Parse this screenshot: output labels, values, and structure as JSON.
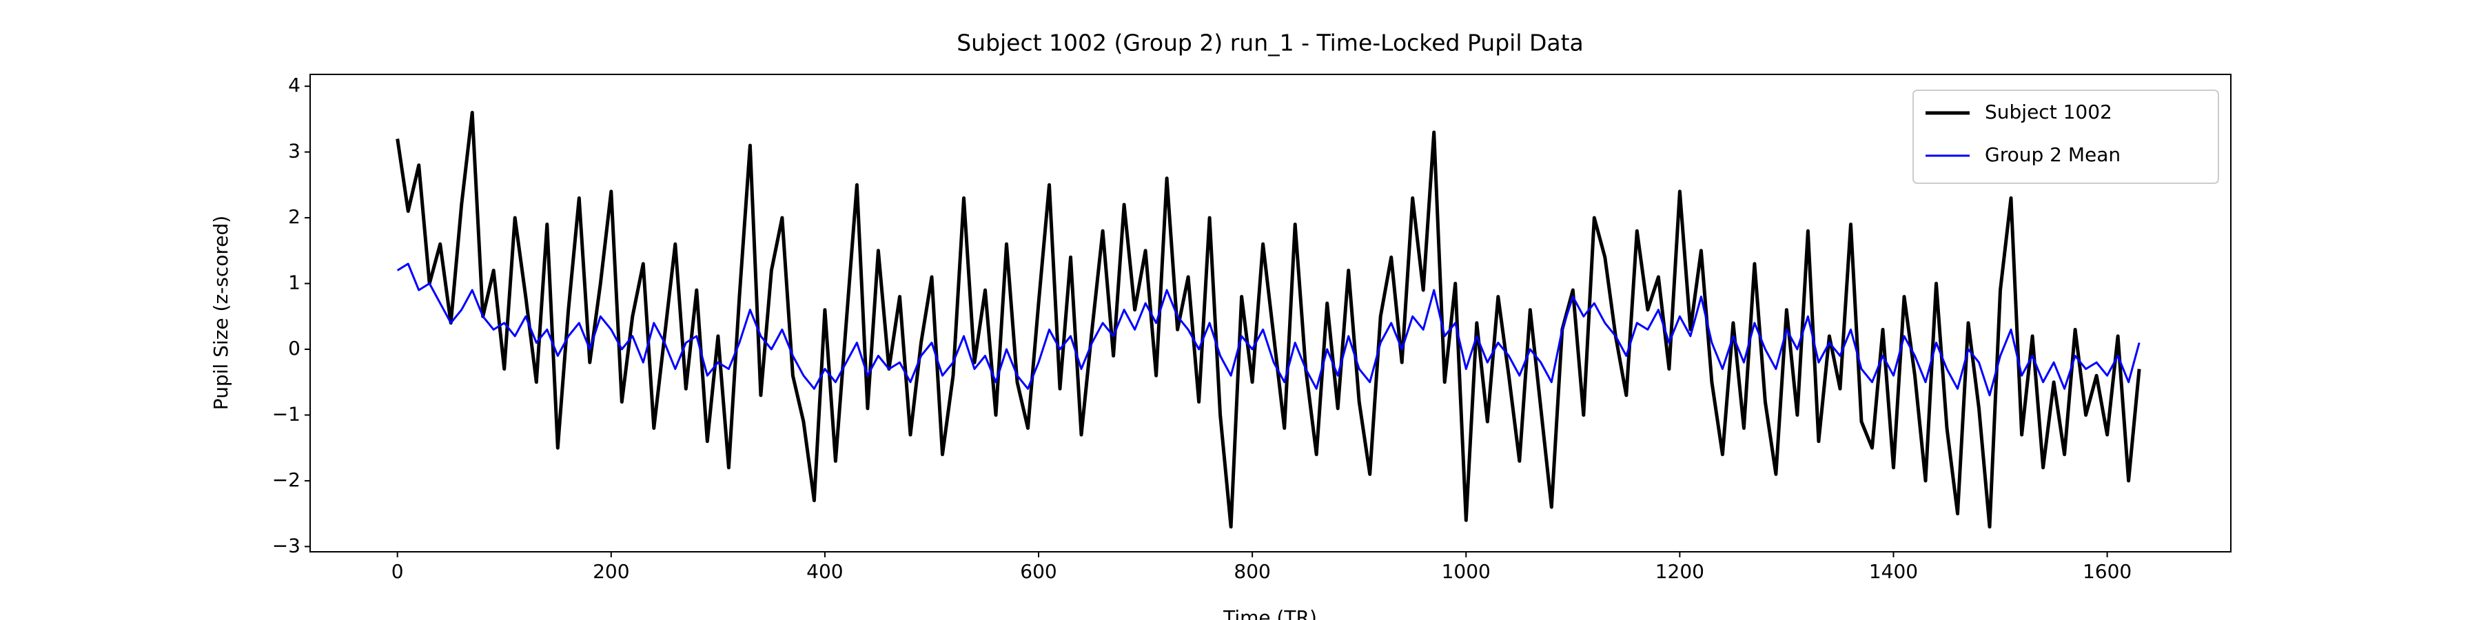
{
  "chart_data": {
    "type": "line",
    "title": "Subject 1002 (Group 2) run_1 - Time-Locked Pupil Data",
    "x_label": "Time (TR)",
    "y_label": "Pupil Size (z-scored)",
    "x": [
      0,
      10,
      20,
      30,
      40,
      50,
      60,
      70,
      80,
      90,
      100,
      110,
      120,
      130,
      140,
      150,
      160,
      170,
      180,
      190,
      200,
      210,
      220,
      230,
      240,
      250,
      260,
      270,
      280,
      290,
      300,
      310,
      320,
      330,
      340,
      350,
      360,
      370,
      380,
      390,
      400,
      410,
      420,
      430,
      440,
      450,
      460,
      470,
      480,
      490,
      500,
      510,
      520,
      530,
      540,
      550,
      560,
      570,
      580,
      590,
      600,
      610,
      620,
      630,
      640,
      650,
      660,
      670,
      680,
      690,
      700,
      710,
      720,
      730,
      740,
      750,
      760,
      770,
      780,
      790,
      800,
      810,
      820,
      830,
      840,
      850,
      860,
      870,
      880,
      890,
      900,
      910,
      920,
      930,
      940,
      950,
      960,
      970,
      980,
      990,
      1000,
      1010,
      1020,
      1030,
      1040,
      1050,
      1060,
      1070,
      1080,
      1090,
      1100,
      1110,
      1120,
      1130,
      1140,
      1150,
      1160,
      1170,
      1180,
      1190,
      1200,
      1210,
      1220,
      1230,
      1240,
      1250,
      1260,
      1270,
      1280,
      1290,
      1300,
      1310,
      1320,
      1330,
      1340,
      1350,
      1360,
      1370,
      1380,
      1390,
      1400,
      1410,
      1420,
      1430,
      1440,
      1450,
      1460,
      1470,
      1480,
      1490,
      1500,
      1510,
      1520,
      1530,
      1540,
      1550,
      1560,
      1570,
      1580,
      1590,
      1600,
      1610,
      1620,
      1630
    ],
    "series": [
      {
        "name": "Subject 1002",
        "color": "#000000",
        "line_width": 5,
        "values": [
          3.2,
          2.1,
          2.8,
          1.0,
          1.6,
          0.4,
          2.2,
          3.6,
          0.5,
          1.2,
          -0.3,
          2.0,
          0.8,
          -0.5,
          1.9,
          -1.5,
          0.6,
          2.3,
          -0.2,
          1.0,
          2.4,
          -0.8,
          0.5,
          1.3,
          -1.2,
          0.2,
          1.6,
          -0.6,
          0.9,
          -1.4,
          0.2,
          -1.8,
          0.8,
          3.1,
          -0.7,
          1.2,
          2.0,
          -0.4,
          -1.1,
          -2.3,
          0.6,
          -1.7,
          0.4,
          2.5,
          -0.9,
          1.5,
          -0.3,
          0.8,
          -1.3,
          0.1,
          1.1,
          -1.6,
          -0.4,
          2.3,
          -0.2,
          0.9,
          -1.0,
          1.6,
          -0.5,
          -1.2,
          0.7,
          2.5,
          -0.6,
          1.4,
          -1.3,
          0.3,
          1.8,
          -0.1,
          2.2,
          0.6,
          1.5,
          -0.4,
          2.6,
          0.3,
          1.1,
          -0.8,
          2.0,
          -1.0,
          -2.7,
          0.8,
          -0.5,
          1.6,
          0.2,
          -1.2,
          1.9,
          -0.3,
          -1.6,
          0.7,
          -0.9,
          1.2,
          -0.8,
          -1.9,
          0.5,
          1.4,
          -0.2,
          2.3,
          0.9,
          3.3,
          -0.5,
          1.0,
          -2.6,
          0.4,
          -1.1,
          0.8,
          -0.4,
          -1.7,
          0.6,
          -0.9,
          -2.4,
          0.3,
          0.9,
          -1.0,
          2.0,
          1.4,
          0.2,
          -0.7,
          1.8,
          0.6,
          1.1,
          -0.3,
          2.4,
          0.3,
          1.5,
          -0.5,
          -1.6,
          0.4,
          -1.2,
          1.3,
          -0.8,
          -1.9,
          0.6,
          -1.0,
          1.8,
          -1.4,
          0.2,
          -0.6,
          1.9,
          -1.1,
          -1.5,
          0.3,
          -1.8,
          0.8,
          -0.4,
          -2.0,
          1.0,
          -1.2,
          -2.5,
          0.4,
          -0.9,
          -2.7,
          0.9,
          2.3,
          -1.3,
          0.2,
          -1.8,
          -0.5,
          -1.6,
          0.3,
          -1.0,
          -0.4,
          -1.3,
          0.2,
          -2.0,
          -0.3
        ]
      },
      {
        "name": "Group 2 Mean",
        "color": "#0000ff",
        "line_width": 3,
        "values": [
          1.2,
          1.3,
          0.9,
          1.0,
          0.7,
          0.4,
          0.6,
          0.9,
          0.5,
          0.3,
          0.4,
          0.2,
          0.5,
          0.1,
          0.3,
          -0.1,
          0.2,
          0.4,
          0.0,
          0.5,
          0.3,
          0.0,
          0.2,
          -0.2,
          0.4,
          0.1,
          -0.3,
          0.1,
          0.2,
          -0.4,
          -0.2,
          -0.3,
          0.1,
          0.6,
          0.2,
          0.0,
          0.3,
          -0.1,
          -0.4,
          -0.6,
          -0.3,
          -0.5,
          -0.2,
          0.1,
          -0.4,
          -0.1,
          -0.3,
          -0.2,
          -0.5,
          -0.1,
          0.1,
          -0.4,
          -0.2,
          0.2,
          -0.3,
          -0.1,
          -0.5,
          0.0,
          -0.4,
          -0.6,
          -0.2,
          0.3,
          0.0,
          0.2,
          -0.3,
          0.1,
          0.4,
          0.2,
          0.6,
          0.3,
          0.7,
          0.4,
          0.9,
          0.5,
          0.3,
          0.0,
          0.4,
          -0.1,
          -0.4,
          0.2,
          0.0,
          0.3,
          -0.2,
          -0.5,
          0.1,
          -0.3,
          -0.6,
          0.0,
          -0.4,
          0.2,
          -0.3,
          -0.5,
          0.1,
          0.4,
          0.0,
          0.5,
          0.3,
          0.9,
          0.2,
          0.4,
          -0.3,
          0.2,
          -0.2,
          0.1,
          -0.1,
          -0.4,
          0.0,
          -0.2,
          -0.5,
          0.3,
          0.8,
          0.5,
          0.7,
          0.4,
          0.2,
          -0.1,
          0.4,
          0.3,
          0.6,
          0.1,
          0.5,
          0.2,
          0.8,
          0.1,
          -0.3,
          0.2,
          -0.2,
          0.4,
          0.0,
          -0.3,
          0.3,
          0.0,
          0.5,
          -0.2,
          0.1,
          -0.1,
          0.3,
          -0.3,
          -0.5,
          -0.1,
          -0.4,
          0.2,
          -0.1,
          -0.5,
          0.1,
          -0.3,
          -0.6,
          0.0,
          -0.2,
          -0.7,
          -0.1,
          0.3,
          -0.4,
          -0.1,
          -0.5,
          -0.2,
          -0.6,
          -0.1,
          -0.3,
          -0.2,
          -0.4,
          -0.1,
          -0.5,
          0.1
        ]
      }
    ],
    "xlim": [
      -81.7,
      1715.7
    ],
    "ylim": [
      -3.08,
      4.18
    ],
    "xticks": [
      0,
      200,
      400,
      600,
      800,
      1000,
      1200,
      1400,
      1600
    ],
    "yticks": [
      {
        "value": -3,
        "label": "−3"
      },
      {
        "value": -2,
        "label": "−2"
      },
      {
        "value": -1,
        "label": "−1"
      },
      0,
      1,
      2,
      3,
      4
    ],
    "legend": "upper right",
    "grid": false
  }
}
